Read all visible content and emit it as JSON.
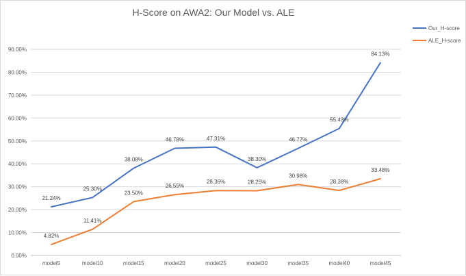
{
  "chart_data": {
    "type": "line",
    "title": "H-Score on AWA2:  Our Model vs. ALE",
    "xlabel": "",
    "ylabel": "",
    "categories": [
      "model5",
      "model10",
      "model15",
      "model20",
      "model25",
      "model30",
      "model35",
      "model40",
      "model45"
    ],
    "series": [
      {
        "name": "Our_H-score",
        "color": "#4472c4",
        "values": [
          21.24,
          25.3,
          38.08,
          46.78,
          47.31,
          38.3,
          46.77,
          55.43,
          84.13
        ],
        "labels": [
          "21.24%",
          "25.30%",
          "38.08%",
          "46.78%",
          "47.31%",
          "38.30%",
          "46.77%",
          "55.43%",
          "84.13%"
        ]
      },
      {
        "name": "ALE_H-score",
        "color": "#ed7d31",
        "values": [
          4.82,
          11.41,
          23.5,
          26.55,
          28.36,
          28.25,
          30.98,
          28.38,
          33.48
        ],
        "labels": [
          "4.82%",
          "11.41%",
          "23.50%",
          "26.55%",
          "28.36%",
          "28.25%",
          "30.98%",
          "28.38%",
          "33.48%"
        ]
      }
    ],
    "ylim": [
      0,
      90
    ],
    "yticks": [
      0,
      10,
      20,
      30,
      40,
      50,
      60,
      70,
      80,
      90
    ],
    "ytick_labels": [
      "0.00%",
      "10.00%",
      "20.00%",
      "30.00%",
      "40.00%",
      "50.00%",
      "60.00%",
      "70.00%",
      "80.00%",
      "90.00%"
    ],
    "grid": true,
    "legend_position": "top-right",
    "gridline_color": "#d9d9d9",
    "axis_color": "#bfbfbf"
  }
}
